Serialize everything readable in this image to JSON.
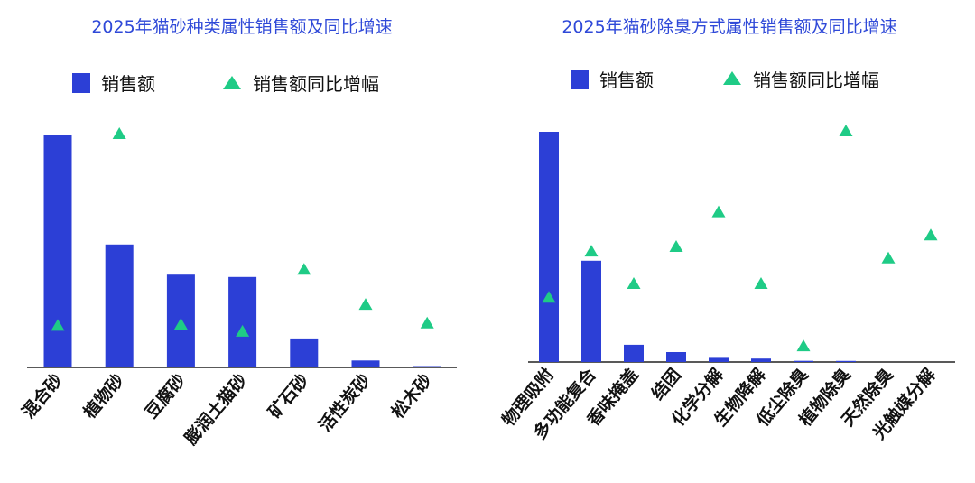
{
  "colors": {
    "bar": "#2c3fd6",
    "marker": "#1fcb86",
    "title": "#2f49d8",
    "axis": "#222222"
  },
  "chart_data": [
    {
      "type": "bar",
      "title": "2025年猫砂种类属性销售额及同比增速",
      "legend": {
        "bar_label": "销售额",
        "marker_label": "销售额同比增幅",
        "placement": "top"
      },
      "categories": [
        "混合砂",
        "植物砂",
        "豆腐砂",
        "膨润土猫砂",
        "矿石砂",
        "活性炭砂",
        "松木砂"
      ],
      "series": [
        {
          "name": "销售额",
          "kind": "bar",
          "values": [
            100,
            53,
            40,
            39,
            12.5,
            3,
            0.6
          ]
        },
        {
          "name": "销售额同比增幅",
          "kind": "marker",
          "values": [
            18,
            100,
            18.5,
            15.5,
            42,
            27,
            19
          ]
        }
      ],
      "ylim": [
        0,
        100
      ]
    },
    {
      "type": "bar",
      "title": "2025年猫砂除臭方式属性销售额及同比增速",
      "legend": {
        "bar_label": "销售额",
        "marker_label": "销售额同比增幅",
        "placement": "top"
      },
      "categories": [
        "物理吸附",
        "多功能复合",
        "香味掩盖",
        "结团",
        "化学分解",
        "生物降解",
        "低尘除臭",
        "植物除臭",
        "天然除臭",
        "光触媒分解"
      ],
      "series": [
        {
          "name": "销售额",
          "kind": "bar",
          "values": [
            100,
            44,
            7.5,
            4.3,
            2.2,
            1.5,
            0.5,
            0.3,
            0,
            0
          ]
        },
        {
          "name": "销售额同比增幅",
          "kind": "marker",
          "values": [
            28,
            48,
            34,
            50,
            65,
            34,
            7,
            100,
            45,
            55
          ]
        }
      ],
      "ylim": [
        0,
        100
      ]
    }
  ]
}
